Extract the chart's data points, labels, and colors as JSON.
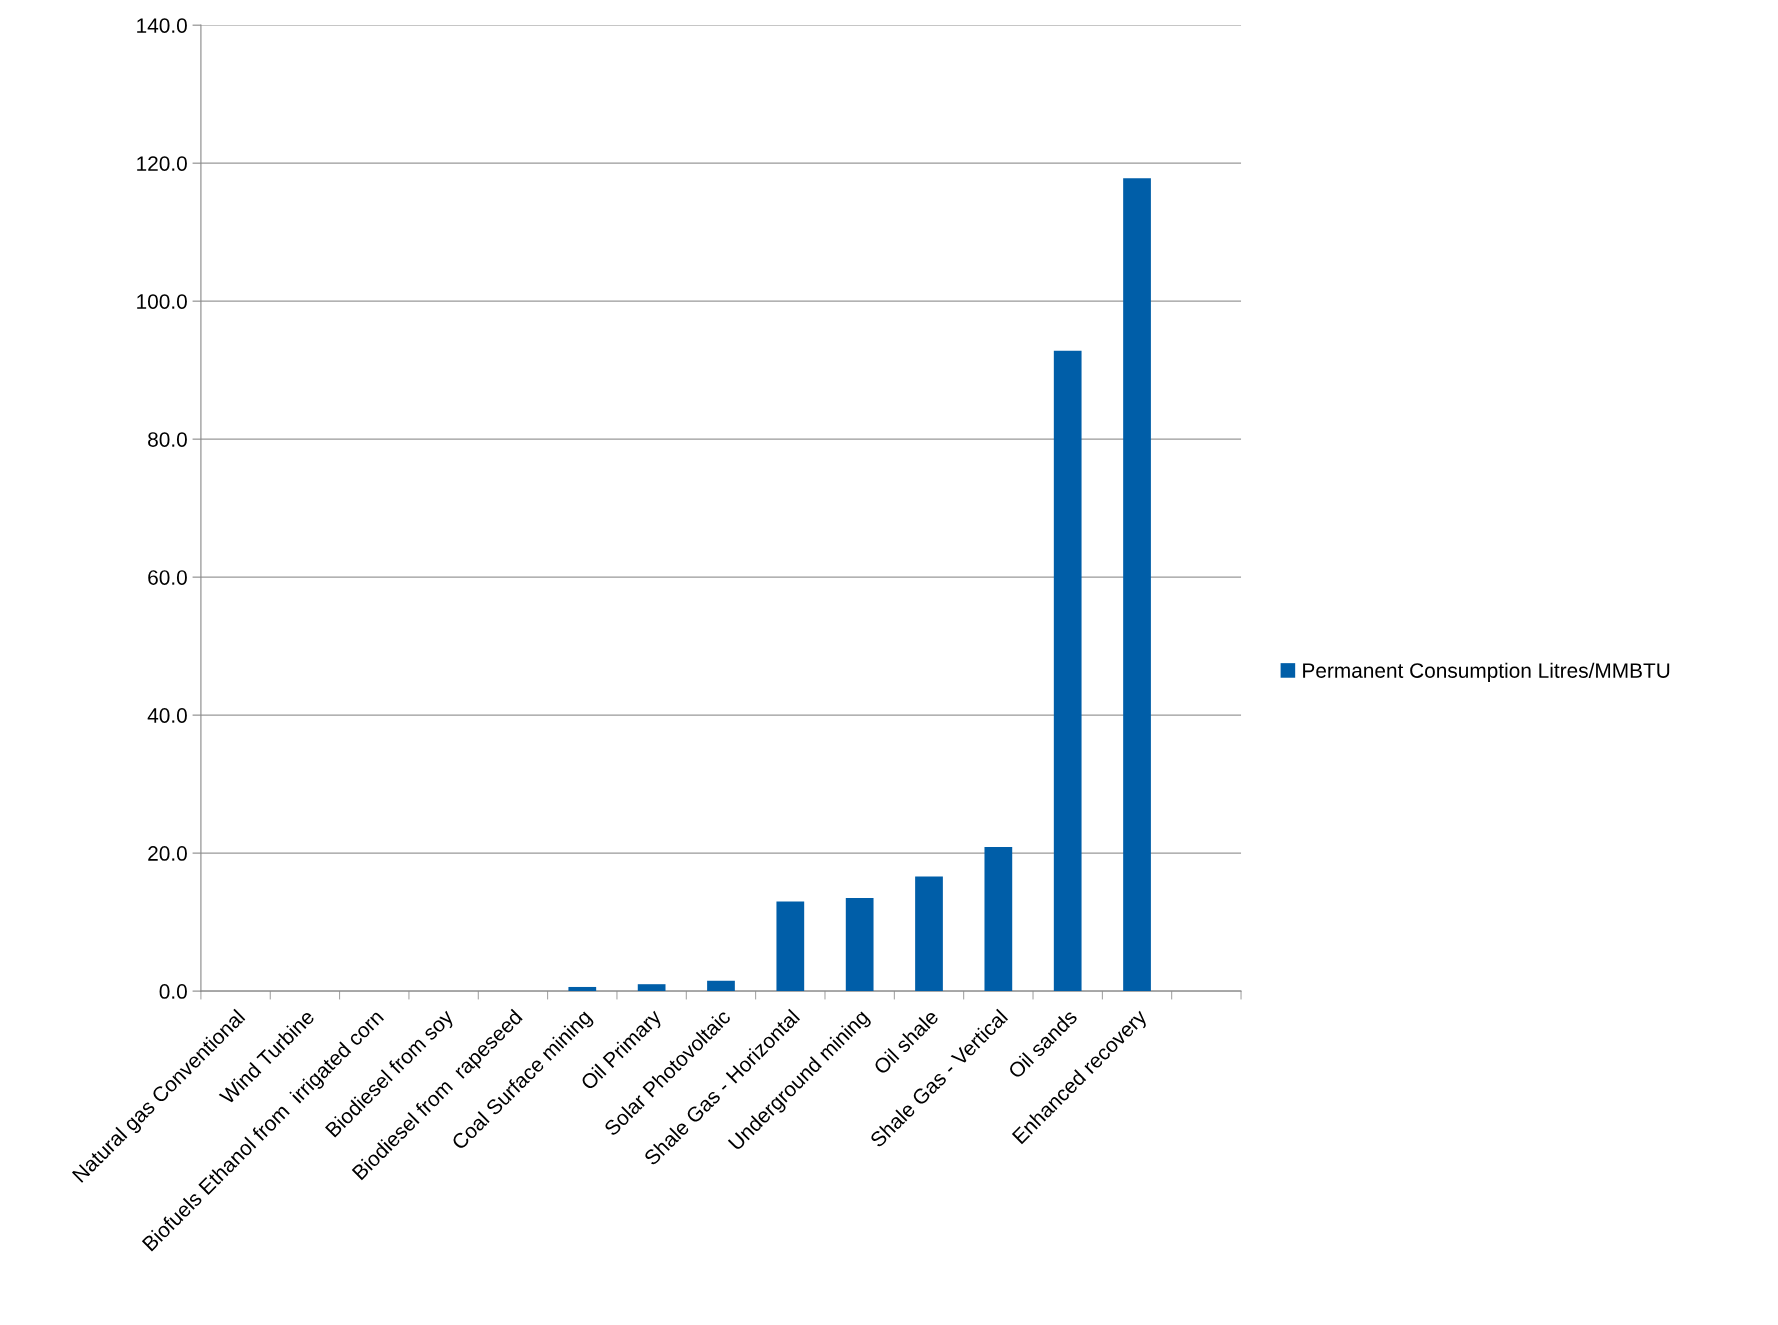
{
  "chart_data": {
    "type": "bar",
    "categories": [
      "Natural gas Conventional",
      "Wind Turbine",
      "Biofuels Ethanol from  irrigated corn",
      "Biodiesel from soy",
      "Biodiesel from  rapeseed",
      "Coal Surface mining",
      "Oil Primary",
      "Solar Photovoltaic",
      "Shale Gas - Horizontal",
      "Underground mining",
      "Oil shale",
      "Shale Gas - Vertical",
      "Oil sands",
      "Enhanced recovery",
      null
    ],
    "series": [
      {
        "name": "Permanent Consumption Litres/MMBTU",
        "color": "#005ea8",
        "values": [
          0,
          0,
          0,
          0,
          0,
          0.6,
          1.0,
          1.5,
          13.0,
          13.5,
          16.6,
          20.9,
          92.8,
          117.8,
          null
        ]
      }
    ],
    "ylim": [
      0,
      140
    ],
    "yticks": [
      {
        "value": 0,
        "label": "0.0"
      },
      {
        "value": 20,
        "label": "20.0"
      },
      {
        "value": 40,
        "label": "40.0"
      },
      {
        "value": 60,
        "label": "60.0"
      },
      {
        "value": 80,
        "label": "80.0"
      },
      {
        "value": 100,
        "label": "100.0"
      },
      {
        "value": 120,
        "label": "120.0"
      },
      {
        "value": 140,
        "label": "140.0"
      }
    ],
    "grid": "y",
    "legend": "right"
  }
}
